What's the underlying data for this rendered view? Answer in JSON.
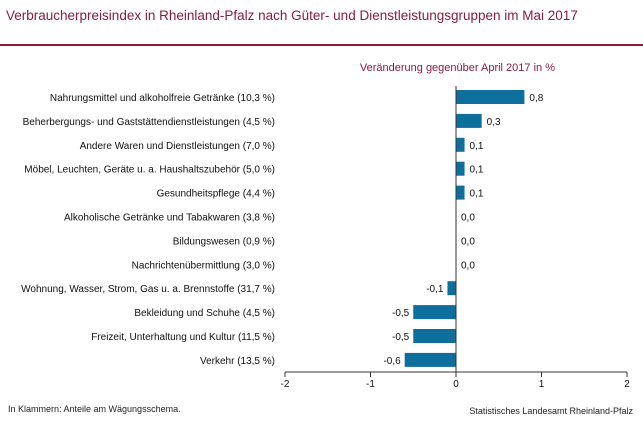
{
  "title": "Verbraucherpreisindex in Rheinland-Pfalz nach Güter- und Dienstleistungsgruppen im Mai 2017",
  "footnote": "In Klammern: Anteile am Wägungsschema.",
  "source": "Statistisches Landesamt Rheinland-Pfalz",
  "colors": {
    "bar": "#0e6f9c",
    "title": "#8a1c3c",
    "axis": "#333333"
  },
  "chart_data": {
    "type": "bar",
    "orientation": "horizontal",
    "value_label": "Veränderung gegenüber April 2017 in %",
    "xlim": [
      -2,
      2
    ],
    "xticks": [
      -2,
      -1,
      0,
      1,
      2
    ],
    "categories": [
      "Nahrungsmittel und alkoholfreie Getränke (10,3 %)",
      "Beherbergungs- und Gaststättendienstleistungen (4,5 %)",
      "Andere Waren und Dienstleistungen (7,0 %)",
      "Möbel, Leuchten, Geräte u. a. Haushaltszubehör (5,0 %)",
      "Gesundheitspflege (4,4 %)",
      "Alkoholische Getränke und Tabakwaren (3,8 %)",
      "Bildungswesen (0,9 %)",
      "Nachrichtenübermittlung (3,0 %)",
      "Wohnung, Wasser, Strom, Gas u. a. Brennstoffe (31,7 %)",
      "Bekleidung und Schuhe (4,5 %)",
      "Freizeit, Unterhaltung und Kultur (11,5 %)",
      "Verkehr (13,5 %)"
    ],
    "values": [
      0.8,
      0.3,
      0.1,
      0.1,
      0.1,
      0.0,
      0.0,
      0.0,
      -0.1,
      -0.5,
      -0.5,
      -0.6
    ],
    "data_labels": [
      "0,8",
      "0,3",
      "0,1",
      "0,1",
      "0,1",
      "0,0",
      "0,0",
      "0,0",
      "-0,1",
      "-0,5",
      "-0,5",
      "-0,6"
    ]
  }
}
